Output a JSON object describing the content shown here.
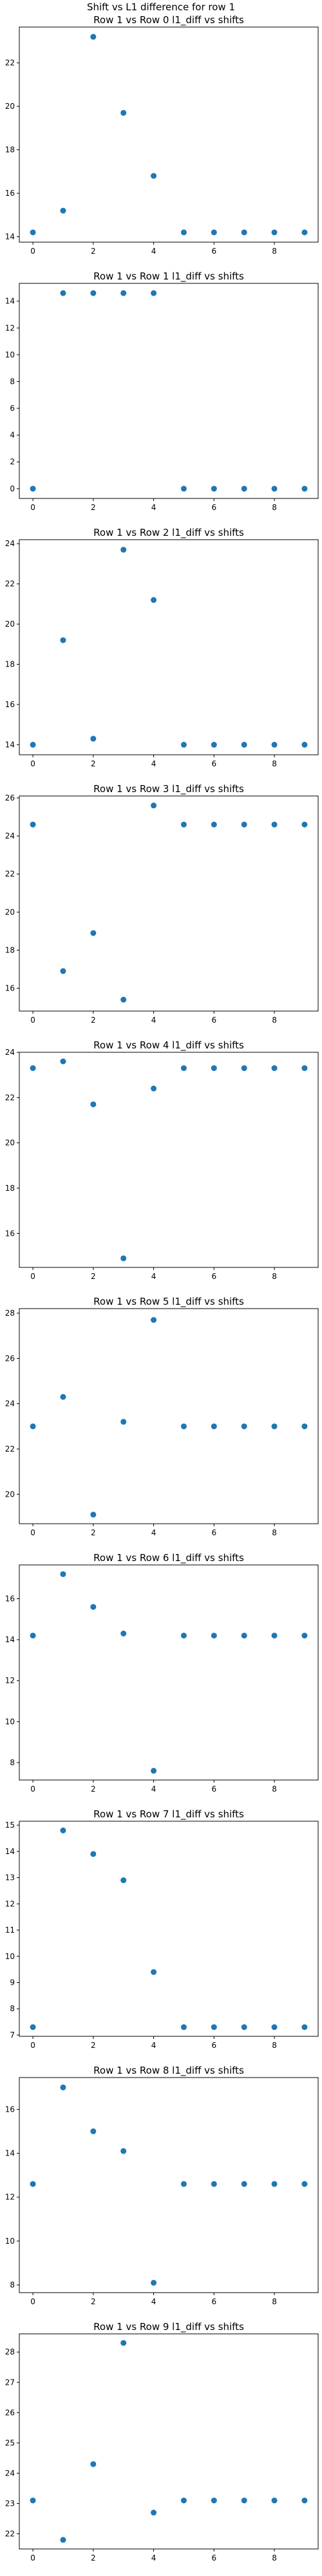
{
  "figure_title": "Shift vs L1 difference for row 1",
  "marker_color": "#1f77b4",
  "chart_data": [
    {
      "type": "scatter",
      "title": "Row 1 vs Row 0 l1_diff vs shifts",
      "x": [
        0,
        1,
        2,
        3,
        4,
        5,
        6,
        7,
        8,
        9
      ],
      "y": [
        14.2,
        15.2,
        23.2,
        19.7,
        16.8,
        14.2,
        14.2,
        14.2,
        14.2,
        14.2
      ],
      "xlim": [
        -0.45,
        9.45
      ],
      "ylim": [
        13.75,
        23.65
      ],
      "xticks": [
        0,
        2,
        4,
        6,
        8
      ],
      "yticks": [
        14,
        16,
        18,
        20,
        22
      ],
      "grid": false,
      "legend": false
    },
    {
      "type": "scatter",
      "title": "Row 1 vs Row 1 l1_diff vs shifts",
      "x": [
        0,
        1,
        2,
        3,
        4,
        5,
        6,
        7,
        8,
        9
      ],
      "y": [
        0,
        14.6,
        14.6,
        14.6,
        14.6,
        0,
        0,
        0,
        0,
        0
      ],
      "xlim": [
        -0.45,
        9.45
      ],
      "ylim": [
        -0.73,
        15.33
      ],
      "xticks": [
        0,
        2,
        4,
        6,
        8
      ],
      "yticks": [
        0,
        2,
        4,
        6,
        8,
        10,
        12,
        14
      ],
      "grid": false,
      "legend": false
    },
    {
      "type": "scatter",
      "title": "Row 1 vs Row 2 l1_diff vs shifts",
      "x": [
        0,
        1,
        2,
        3,
        4,
        5,
        6,
        7,
        8,
        9
      ],
      "y": [
        14.0,
        19.2,
        14.3,
        23.7,
        21.2,
        14.0,
        14.0,
        14.0,
        14.0,
        14.0
      ],
      "xlim": [
        -0.45,
        9.45
      ],
      "ylim": [
        13.5,
        24.2
      ],
      "xticks": [
        0,
        2,
        4,
        6,
        8
      ],
      "yticks": [
        14,
        16,
        18,
        20,
        22,
        24
      ],
      "grid": false,
      "legend": false
    },
    {
      "type": "scatter",
      "title": "Row 1 vs Row 3 l1_diff vs shifts",
      "x": [
        0,
        1,
        2,
        3,
        4,
        5,
        6,
        7,
        8,
        9
      ],
      "y": [
        24.6,
        16.9,
        18.9,
        15.4,
        25.6,
        24.6,
        24.6,
        24.6,
        24.6,
        24.6
      ],
      "xlim": [
        -0.45,
        9.45
      ],
      "ylim": [
        14.8,
        26.1
      ],
      "xticks": [
        0,
        2,
        4,
        6,
        8
      ],
      "yticks": [
        16,
        18,
        20,
        22,
        24,
        26
      ],
      "grid": false,
      "legend": false
    },
    {
      "type": "scatter",
      "title": "Row 1 vs Row 4 l1_diff vs shifts",
      "x": [
        0,
        1,
        2,
        3,
        4,
        5,
        6,
        7,
        8,
        9
      ],
      "y": [
        23.3,
        23.6,
        21.7,
        14.9,
        22.4,
        23.3,
        23.3,
        23.3,
        23.3,
        23.3
      ],
      "xlim": [
        -0.45,
        9.45
      ],
      "ylim": [
        14.5,
        24.0
      ],
      "xticks": [
        0,
        2,
        4,
        6,
        8
      ],
      "yticks": [
        16,
        18,
        20,
        22,
        24
      ],
      "grid": false,
      "legend": false
    },
    {
      "type": "scatter",
      "title": "Row 1 vs Row 5 l1_diff vs shifts",
      "x": [
        0,
        1,
        2,
        3,
        4,
        5,
        6,
        7,
        8,
        9
      ],
      "y": [
        23.0,
        24.3,
        19.1,
        23.2,
        27.7,
        23.0,
        23.0,
        23.0,
        23.0,
        23.0
      ],
      "xlim": [
        -0.45,
        9.45
      ],
      "ylim": [
        18.7,
        28.2
      ],
      "xticks": [
        0,
        2,
        4,
        6,
        8
      ],
      "yticks": [
        20,
        22,
        24,
        26,
        28
      ],
      "grid": false,
      "legend": false
    },
    {
      "type": "scatter",
      "title": "Row 1 vs Row 6 l1_diff vs shifts",
      "x": [
        0,
        1,
        2,
        3,
        4,
        5,
        6,
        7,
        8,
        9
      ],
      "y": [
        14.2,
        17.2,
        15.6,
        14.3,
        7.6,
        14.2,
        14.2,
        14.2,
        14.2,
        14.2
      ],
      "xlim": [
        -0.45,
        9.45
      ],
      "ylim": [
        7.15,
        17.65
      ],
      "xticks": [
        0,
        2,
        4,
        6,
        8
      ],
      "yticks": [
        8,
        10,
        12,
        14,
        16
      ],
      "grid": false,
      "legend": false
    },
    {
      "type": "scatter",
      "title": "Row 1 vs Row 7 l1_diff vs shifts",
      "x": [
        0,
        1,
        2,
        3,
        4,
        5,
        6,
        7,
        8,
        9
      ],
      "y": [
        7.3,
        14.8,
        13.9,
        12.9,
        9.4,
        7.3,
        7.3,
        7.3,
        7.3,
        7.3
      ],
      "xlim": [
        -0.45,
        9.45
      ],
      "ylim": [
        6.95,
        15.15
      ],
      "xticks": [
        0,
        2,
        4,
        6,
        8
      ],
      "yticks": [
        7,
        8,
        9,
        10,
        11,
        12,
        13,
        14,
        15
      ],
      "grid": false,
      "legend": false
    },
    {
      "type": "scatter",
      "title": "Row 1 vs Row 8 l1_diff vs shifts",
      "x": [
        0,
        1,
        2,
        3,
        4,
        5,
        6,
        7,
        8,
        9
      ],
      "y": [
        12.6,
        17.0,
        15.0,
        14.1,
        8.1,
        12.6,
        12.6,
        12.6,
        12.6,
        12.6
      ],
      "xlim": [
        -0.45,
        9.45
      ],
      "ylim": [
        7.65,
        17.45
      ],
      "xticks": [
        0,
        2,
        4,
        6,
        8
      ],
      "yticks": [
        8,
        10,
        12,
        14,
        16
      ],
      "grid": false,
      "legend": false
    },
    {
      "type": "scatter",
      "title": "Row 1 vs Row 9 l1_diff vs shifts",
      "x": [
        0,
        1,
        2,
        3,
        4,
        5,
        6,
        7,
        8,
        9
      ],
      "y": [
        23.1,
        21.8,
        24.3,
        28.3,
        22.7,
        23.1,
        23.1,
        23.1,
        23.1,
        23.1
      ],
      "xlim": [
        -0.45,
        9.45
      ],
      "ylim": [
        21.5,
        28.6
      ],
      "xticks": [
        0,
        2,
        4,
        6,
        8
      ],
      "yticks": [
        22,
        23,
        24,
        25,
        26,
        27,
        28
      ],
      "grid": false,
      "legend": false
    }
  ]
}
